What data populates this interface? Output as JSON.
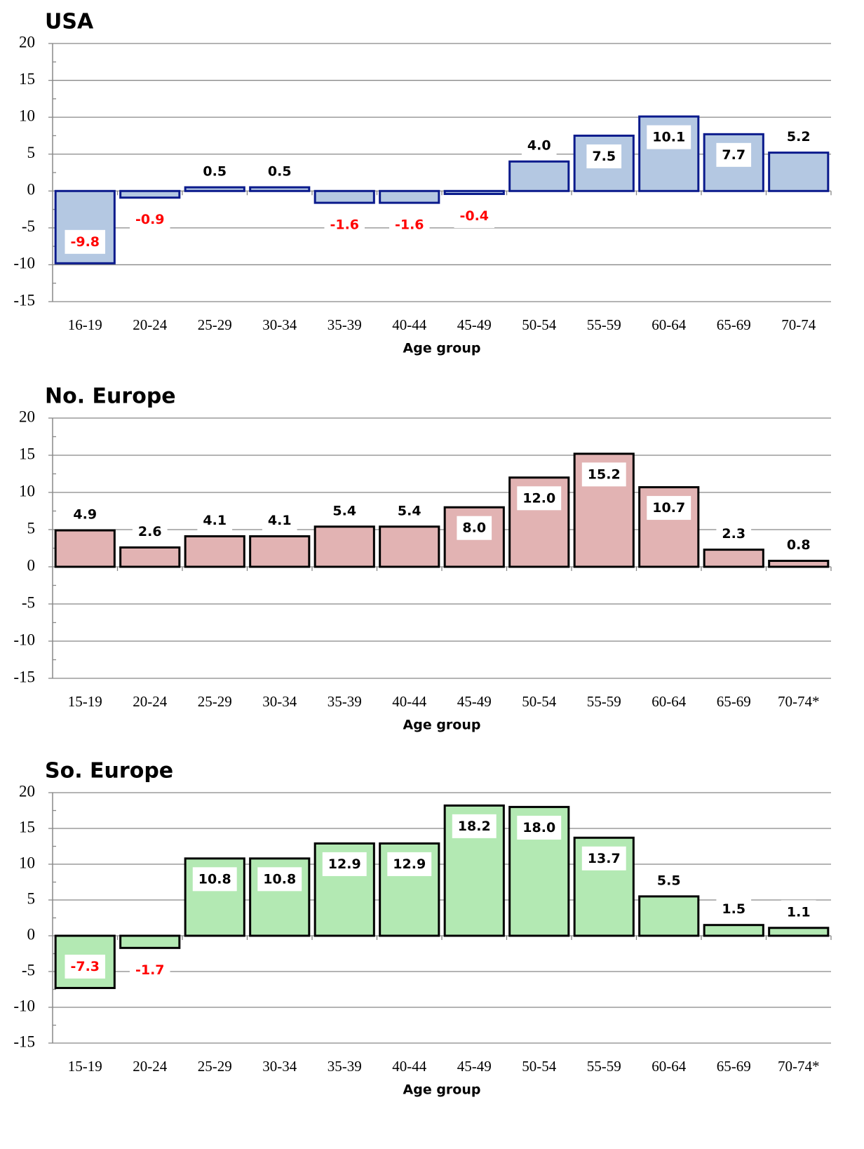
{
  "chart_data": [
    {
      "type": "bar",
      "title": "USA",
      "x_label": "Age group",
      "categories": [
        "16-19",
        "20-24",
        "25-29",
        "30-34",
        "35-39",
        "40-44",
        "45-49",
        "50-54",
        "55-59",
        "60-64",
        "65-69",
        "70-74"
      ],
      "values": [
        -9.8,
        -0.9,
        0.5,
        0.5,
        -1.6,
        -1.6,
        -0.4,
        4.0,
        7.5,
        10.1,
        7.7,
        5.2
      ],
      "value_labels": [
        "-9.8",
        "-0.9",
        "0.5",
        "0.5",
        "-1.6",
        "-1.6",
        "-0.4",
        "4.0",
        "7.5",
        "10.1",
        "7.7",
        "5.2"
      ],
      "color": "#b4c8e2",
      "edge_color": "#0a1a8c",
      "label_color": "#000000",
      "negative_label_color": "#ff0000",
      "ylim": [
        -15,
        20
      ],
      "yticks": [
        -15,
        -10,
        -5,
        0,
        5,
        10,
        15,
        20
      ],
      "grid": true
    },
    {
      "type": "bar",
      "title": "No. Europe",
      "x_label": "Age group",
      "categories": [
        "15-19",
        "20-24",
        "25-29",
        "30-34",
        "35-39",
        "40-44",
        "45-49",
        "50-54",
        "55-59",
        "60-64",
        "65-69",
        "70-74*"
      ],
      "values": [
        4.9,
        2.6,
        4.1,
        4.1,
        5.4,
        5.4,
        8.0,
        12.0,
        15.2,
        10.7,
        2.3,
        0.8
      ],
      "value_labels": [
        "4.9",
        "2.6",
        "4.1",
        "4.1",
        "5.4",
        "5.4",
        "8.0",
        "12.0",
        "15.2",
        "10.7",
        "2.3",
        "0.8"
      ],
      "color": "#e2b3b3",
      "edge_color": "#000000",
      "label_color": "#000000",
      "negative_label_color": "#ff0000",
      "ylim": [
        -15,
        20
      ],
      "yticks": [
        -15,
        -10,
        -5,
        0,
        5,
        10,
        15,
        20
      ],
      "grid": true
    },
    {
      "type": "bar",
      "title": "So. Europe",
      "x_label": "Age group",
      "categories": [
        "15-19",
        "20-24",
        "25-29",
        "30-34",
        "35-39",
        "40-44",
        "45-49",
        "50-54",
        "55-59",
        "60-64",
        "65-69",
        "70-74*"
      ],
      "values": [
        -7.3,
        -1.7,
        10.8,
        10.8,
        12.9,
        12.9,
        18.2,
        18.0,
        13.7,
        5.5,
        1.5,
        1.1
      ],
      "value_labels": [
        "-7.3",
        "-1.7",
        "10.8",
        "10.8",
        "12.9",
        "12.9",
        "18.2",
        "18.0",
        "13.7",
        "5.5",
        "1.5",
        "1.1"
      ],
      "color": "#b3e9b3",
      "edge_color": "#000000",
      "label_color": "#000000",
      "negative_label_color": "#ff0000",
      "ylim": [
        -15,
        20
      ],
      "yticks": [
        -15,
        -10,
        -5,
        0,
        5,
        10,
        15,
        20
      ],
      "grid": true
    }
  ]
}
